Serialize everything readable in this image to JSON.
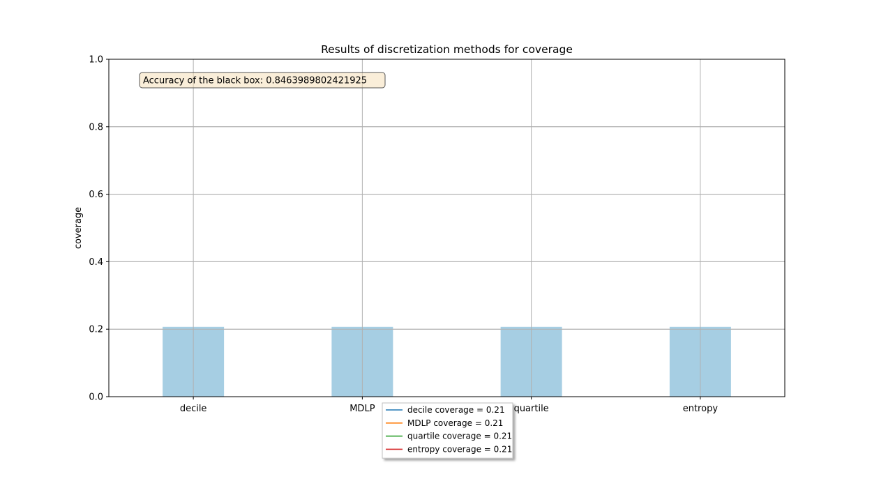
{
  "chart_data": {
    "type": "bar",
    "title": "Results of discretization methods for coverage",
    "xlabel": "",
    "ylabel": "coverage",
    "categories": [
      "decile",
      "MDLP",
      "quartile",
      "entropy"
    ],
    "values": [
      0.207,
      0.207,
      0.207,
      0.207
    ],
    "ylim": [
      0,
      1.0
    ],
    "yticks": [
      "0.0",
      "0.2",
      "0.4",
      "0.6",
      "0.8",
      "1.0"
    ],
    "grid": true,
    "bar_color": "#a6cee3",
    "annotation": "Accuracy of the black box: 0.8463989802421925",
    "legend": {
      "placement": "below-center",
      "entries": [
        {
          "label": "decile coverage = 0.21",
          "color": "#1f77b4"
        },
        {
          "label": "MDLP coverage = 0.21",
          "color": "#ff7f0e"
        },
        {
          "label": "quartile coverage = 0.21",
          "color": "#2ca02c"
        },
        {
          "label": "entropy coverage = 0.21",
          "color": "#d62728"
        }
      ]
    }
  }
}
